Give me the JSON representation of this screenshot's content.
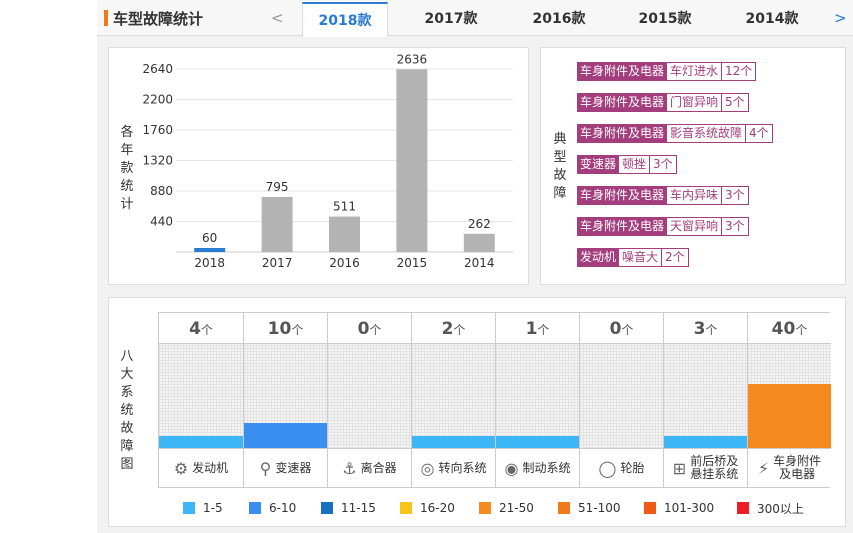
{
  "header": {
    "title": "车型故障统计",
    "prev": "<",
    "next": ">",
    "tabs": [
      {
        "label": "2018款",
        "active": true
      },
      {
        "label": "2017款"
      },
      {
        "label": "2016款"
      },
      {
        "label": "2015款"
      },
      {
        "label": "2014款"
      }
    ]
  },
  "year_chart": {
    "ylabel": "各年款统计",
    "ylabel_chars": [
      "各",
      "年",
      "款",
      "统",
      "计"
    ]
  },
  "chart_data": {
    "type": "bar",
    "categories": [
      "2018",
      "2017",
      "2016",
      "2015",
      "2014"
    ],
    "values": [
      60,
      795,
      511,
      2636,
      262
    ],
    "ylim": [
      0,
      2640
    ],
    "yticks": [
      440,
      880,
      1320,
      1760,
      2200,
      2640
    ],
    "ylabel": "各年款统计",
    "bar_color": "#b3b3b3",
    "highlight_color": "#2a7bd4",
    "grid": true
  },
  "typical": {
    "label_chars": [
      "典",
      "型",
      "故",
      "障"
    ],
    "faults": [
      {
        "cat": "车身附件及电器",
        "name": "车灯进水",
        "count": "12个"
      },
      {
        "cat": "车身附件及电器",
        "name": "门窗异响",
        "count": "5个"
      },
      {
        "cat": "车身附件及电器",
        "name": "影音系统故障",
        "count": "4个"
      },
      {
        "cat": "变速器",
        "name": "顿挫",
        "count": "3个"
      },
      {
        "cat": "车身附件及电器",
        "name": "车内异味",
        "count": "3个"
      },
      {
        "cat": "车身附件及电器",
        "name": "天窗异响",
        "count": "3个"
      },
      {
        "cat": "发动机",
        "name": "噪音大",
        "count": "2个"
      }
    ]
  },
  "systems": {
    "label_chars": [
      "八",
      "大",
      "系",
      "统",
      "故",
      "障",
      "图"
    ],
    "unit": "个",
    "items": [
      {
        "count": "4",
        "name": "发动机",
        "icon": "engine-icon",
        "glyph": "⚙",
        "level": 0.12,
        "color": "#3db6f5"
      },
      {
        "count": "10",
        "name": "变速器",
        "icon": "gear-shifter-icon",
        "glyph": "⚲",
        "level": 0.24,
        "color": "#3a8ef0"
      },
      {
        "count": "0",
        "name": "离合器",
        "icon": "clutch-pedal-icon",
        "glyph": "⚓",
        "level": 0,
        "color": "#3db6f5"
      },
      {
        "count": "2",
        "name": "转向系统",
        "icon": "steering-wheel-icon",
        "glyph": "◎",
        "level": 0.12,
        "color": "#3db6f5"
      },
      {
        "count": "1",
        "name": "制动系统",
        "icon": "brake-disc-icon",
        "glyph": "◉",
        "level": 0.12,
        "color": "#3db6f5"
      },
      {
        "count": "0",
        "name": "轮胎",
        "icon": "tire-icon",
        "glyph": "◯",
        "level": 0,
        "color": "#3db6f5"
      },
      {
        "count": "3",
        "name": "前后桥及悬挂系统",
        "name_line1": "前后桥及",
        "name_line2": "悬挂系统",
        "icon": "axle-icon",
        "glyph": "⊞",
        "level": 0.12,
        "color": "#3db6f5"
      },
      {
        "count": "40",
        "name": "车身附件及电器",
        "name_line1": "车身附件",
        "name_line2": "及电器",
        "icon": "battery-icon",
        "glyph": "⚡",
        "level": 0.62,
        "color": "#f58a1f"
      }
    ]
  },
  "legend": [
    {
      "label": "1-5",
      "color": "#3db6f5"
    },
    {
      "label": "6-10",
      "color": "#3a8ef0"
    },
    {
      "label": "11-15",
      "color": "#1770c2"
    },
    {
      "label": "16-20",
      "color": "#f5c518"
    },
    {
      "label": "21-50",
      "color": "#f58a1f"
    },
    {
      "label": "51-100",
      "color": "#f07a1a"
    },
    {
      "label": "101-300",
      "color": "#f05a14"
    },
    {
      "label": "300以上",
      "color": "#ee1c24"
    }
  ]
}
